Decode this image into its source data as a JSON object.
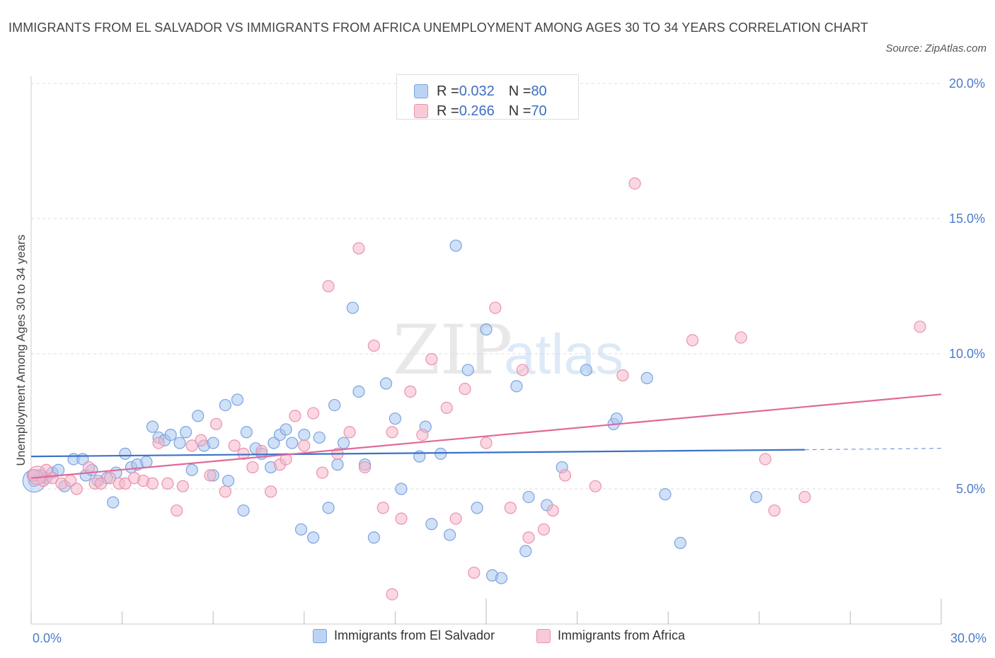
{
  "title": "IMMIGRANTS FROM EL SALVADOR VS IMMIGRANTS FROM AFRICA UNEMPLOYMENT AMONG AGES 30 TO 34 YEARS CORRELATION CHART",
  "source": "Source: ZipAtlas.com",
  "watermark": {
    "zip": "ZIP",
    "atlas": "atlas"
  },
  "legend_top": [
    {
      "r_label": "R = ",
      "r_value": "0.032",
      "n_label": "N = ",
      "n_value": "80"
    },
    {
      "r_label": "R = ",
      "r_value": "0.266",
      "n_label": "N = ",
      "n_value": "70"
    }
  ],
  "colors": {
    "blue_fill": "#a8c6f0",
    "blue_stroke": "#7ba3e0",
    "blue_line": "#3a72c8",
    "pink_fill": "#f5b6c9",
    "pink_stroke": "#eb92ad",
    "pink_line": "#e0699a",
    "tick_text": "#4a7cc9",
    "grid": "#dddddd"
  },
  "chart_data": {
    "type": "scatter",
    "title": "IMMIGRANTS FROM EL SALVADOR VS IMMIGRANTS FROM AFRICA UNEMPLOYMENT AMONG AGES 30 TO 34 YEARS CORRELATION CHART",
    "xlabel": "",
    "ylabel": "Unemployment Among Ages 30 to 34 years",
    "xlim": [
      0,
      30
    ],
    "ylim": [
      0,
      20
    ],
    "x_tick_labels": [
      {
        "value": 0,
        "label": "0.0%"
      },
      {
        "value": 30,
        "label": "30.0%"
      }
    ],
    "y_tick_labels": [
      {
        "value": 5,
        "label": "5.0%"
      },
      {
        "value": 10,
        "label": "10.0%"
      },
      {
        "value": 15,
        "label": "15.0%"
      },
      {
        "value": 20,
        "label": "20.0%"
      }
    ],
    "grid": true,
    "legend_position": "bottom",
    "series": [
      {
        "name": "Immigrants from El Salvador",
        "color": "#a8c6f0",
        "trend": {
          "x": [
            0,
            25.5
          ],
          "y": [
            6.2,
            6.45
          ],
          "dashed_to_x": 30,
          "dashed_to_y": 6.5
        },
        "points": [
          [
            0.1,
            5.3
          ],
          [
            0.3,
            5.5
          ],
          [
            0.5,
            5.4
          ],
          [
            0.7,
            5.6
          ],
          [
            0.9,
            5.7
          ],
          [
            1.1,
            5.1
          ],
          [
            1.4,
            6.1
          ],
          [
            1.7,
            6.1
          ],
          [
            1.8,
            5.5
          ],
          [
            2.0,
            5.7
          ],
          [
            2.2,
            5.3
          ],
          [
            2.5,
            5.4
          ],
          [
            2.7,
            4.5
          ],
          [
            2.8,
            5.6
          ],
          [
            3.1,
            6.3
          ],
          [
            3.3,
            5.8
          ],
          [
            3.5,
            5.9
          ],
          [
            3.8,
            6.0
          ],
          [
            4.0,
            7.3
          ],
          [
            4.2,
            6.9
          ],
          [
            4.4,
            6.8
          ],
          [
            4.6,
            7.0
          ],
          [
            4.9,
            6.7
          ],
          [
            5.1,
            7.1
          ],
          [
            5.3,
            5.7
          ],
          [
            5.5,
            7.7
          ],
          [
            5.7,
            6.6
          ],
          [
            6.0,
            6.7
          ],
          [
            6.0,
            5.5
          ],
          [
            6.4,
            8.1
          ],
          [
            6.5,
            5.3
          ],
          [
            6.8,
            8.3
          ],
          [
            7.0,
            4.2
          ],
          [
            7.1,
            7.1
          ],
          [
            7.4,
            6.5
          ],
          [
            7.6,
            6.3
          ],
          [
            7.9,
            5.8
          ],
          [
            8.0,
            6.7
          ],
          [
            8.2,
            7.0
          ],
          [
            8.4,
            7.2
          ],
          [
            8.6,
            6.7
          ],
          [
            8.9,
            3.5
          ],
          [
            9.0,
            7.0
          ],
          [
            9.3,
            3.2
          ],
          [
            9.5,
            6.9
          ],
          [
            9.8,
            4.3
          ],
          [
            10.0,
            8.1
          ],
          [
            10.1,
            5.9
          ],
          [
            10.3,
            6.7
          ],
          [
            10.6,
            11.7
          ],
          [
            10.8,
            8.6
          ],
          [
            11.0,
            5.9
          ],
          [
            11.3,
            3.2
          ],
          [
            11.7,
            8.9
          ],
          [
            12.0,
            7.6
          ],
          [
            12.2,
            5.0
          ],
          [
            12.8,
            6.2
          ],
          [
            13.0,
            7.3
          ],
          [
            13.2,
            3.7
          ],
          [
            13.5,
            6.3
          ],
          [
            13.8,
            3.3
          ],
          [
            14.0,
            14.0
          ],
          [
            14.4,
            9.4
          ],
          [
            14.7,
            4.3
          ],
          [
            15.0,
            10.9
          ],
          [
            15.2,
            1.8
          ],
          [
            15.5,
            1.7
          ],
          [
            16.0,
            8.8
          ],
          [
            16.3,
            2.7
          ],
          [
            16.4,
            4.7
          ],
          [
            17.0,
            4.4
          ],
          [
            17.5,
            5.8
          ],
          [
            18.3,
            9.4
          ],
          [
            19.2,
            7.4
          ],
          [
            19.3,
            7.6
          ],
          [
            20.3,
            9.1
          ],
          [
            20.9,
            4.8
          ],
          [
            21.4,
            3.0
          ],
          [
            23.9,
            4.7
          ],
          [
            0.05,
            5.5
          ]
        ]
      },
      {
        "name": "Immigrants from Africa",
        "color": "#f5b6c9",
        "trend": {
          "x": [
            0,
            30
          ],
          "y": [
            5.4,
            8.5
          ]
        },
        "points": [
          [
            0.1,
            5.5
          ],
          [
            0.4,
            5.3
          ],
          [
            0.7,
            5.4
          ],
          [
            1.0,
            5.2
          ],
          [
            1.3,
            5.3
          ],
          [
            1.5,
            5.0
          ],
          [
            1.9,
            5.8
          ],
          [
            2.1,
            5.2
          ],
          [
            2.3,
            5.2
          ],
          [
            2.6,
            5.4
          ],
          [
            2.9,
            5.2
          ],
          [
            3.1,
            5.2
          ],
          [
            3.4,
            5.4
          ],
          [
            3.7,
            5.3
          ],
          [
            4.0,
            5.2
          ],
          [
            4.2,
            6.7
          ],
          [
            4.5,
            5.2
          ],
          [
            4.8,
            4.2
          ],
          [
            5.0,
            5.1
          ],
          [
            5.3,
            6.6
          ],
          [
            5.6,
            6.8
          ],
          [
            5.9,
            5.5
          ],
          [
            6.1,
            7.4
          ],
          [
            6.4,
            4.9
          ],
          [
            6.7,
            6.6
          ],
          [
            7.0,
            6.3
          ],
          [
            7.3,
            5.8
          ],
          [
            7.6,
            6.4
          ],
          [
            7.9,
            4.9
          ],
          [
            8.2,
            5.9
          ],
          [
            8.4,
            6.1
          ],
          [
            8.7,
            7.7
          ],
          [
            9.0,
            6.6
          ],
          [
            9.3,
            7.8
          ],
          [
            9.6,
            5.6
          ],
          [
            9.8,
            12.5
          ],
          [
            10.1,
            6.3
          ],
          [
            10.5,
            7.1
          ],
          [
            10.8,
            13.9
          ],
          [
            11.0,
            5.8
          ],
          [
            11.3,
            10.3
          ],
          [
            11.6,
            4.3
          ],
          [
            11.9,
            7.1
          ],
          [
            12.2,
            3.9
          ],
          [
            12.5,
            8.6
          ],
          [
            12.9,
            7.0
          ],
          [
            13.2,
            9.8
          ],
          [
            13.7,
            8.0
          ],
          [
            14.0,
            3.9
          ],
          [
            14.3,
            8.7
          ],
          [
            14.6,
            1.9
          ],
          [
            15.0,
            6.7
          ],
          [
            15.3,
            11.7
          ],
          [
            15.8,
            4.3
          ],
          [
            16.2,
            9.4
          ],
          [
            16.4,
            3.2
          ],
          [
            16.9,
            3.5
          ],
          [
            17.2,
            4.2
          ],
          [
            17.6,
            5.5
          ],
          [
            18.6,
            5.1
          ],
          [
            19.5,
            9.2
          ],
          [
            19.9,
            16.3
          ],
          [
            21.8,
            10.5
          ],
          [
            23.4,
            10.6
          ],
          [
            24.2,
            6.1
          ],
          [
            24.5,
            4.2
          ],
          [
            25.5,
            4.7
          ],
          [
            29.3,
            11.0
          ],
          [
            0.5,
            5.7
          ],
          [
            11.9,
            1.1
          ]
        ]
      }
    ]
  },
  "legend_bottom": [
    {
      "label": "Immigrants from El Salvador"
    },
    {
      "label": "Immigrants from Africa"
    }
  ]
}
